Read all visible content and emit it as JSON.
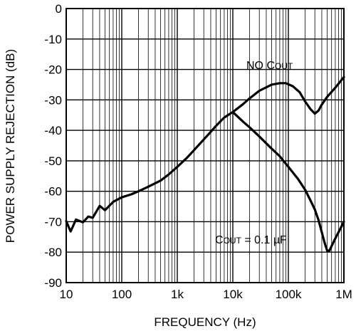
{
  "chart_data": {
    "type": "line",
    "title": "",
    "xlabel": "FREQUENCY (Hz)",
    "ylabel": "POWER SUPPLY REJECTION (dB)",
    "xscale": "log",
    "xlim": [
      10,
      1000000
    ],
    "ylim": [
      -90,
      0
    ],
    "grid": true,
    "x_ticks": [
      {
        "value": 10,
        "label": "10"
      },
      {
        "value": 100,
        "label": "100"
      },
      {
        "value": 1000,
        "label": "1k"
      },
      {
        "value": 10000,
        "label": "10k"
      },
      {
        "value": 100000,
        "label": "100k"
      },
      {
        "value": 1000000,
        "label": "1M"
      }
    ],
    "y_ticks": [
      {
        "value": 0,
        "label": "0"
      },
      {
        "value": -10,
        "label": "-10"
      },
      {
        "value": -20,
        "label": "-20"
      },
      {
        "value": -30,
        "label": "-30"
      },
      {
        "value": -40,
        "label": "-40"
      },
      {
        "value": -50,
        "label": "-50"
      },
      {
        "value": -60,
        "label": "-60"
      },
      {
        "value": -70,
        "label": "-70"
      },
      {
        "value": -80,
        "label": "-80"
      },
      {
        "value": -90,
        "label": "-90"
      }
    ],
    "series": [
      {
        "name": "NO COUT",
        "x": [
          10000,
          15000,
          20000,
          30000,
          50000,
          70000,
          90000,
          120000,
          160000,
          200000,
          250000,
          300000,
          350000,
          400000,
          500000,
          700000,
          1000000
        ],
        "y": [
          -34,
          -31.5,
          -29.5,
          -27,
          -25,
          -24.5,
          -24.5,
          -25.5,
          -27.5,
          -30.5,
          -33,
          -34.5,
          -33.5,
          -31.5,
          -29,
          -26,
          -22.5
        ]
      },
      {
        "name": "COUT = 0.1 µF",
        "x": [
          10,
          12,
          15,
          20,
          25,
          30,
          40,
          50,
          70,
          100,
          150,
          200,
          300,
          500,
          700,
          1000,
          1500,
          2000,
          3000,
          4000,
          5000,
          7000,
          9000,
          10000,
          15000,
          20000,
          30000,
          50000,
          70000,
          100000,
          150000,
          200000,
          250000,
          300000,
          350000,
          400000,
          450000,
          500000,
          550000,
          600000,
          700000,
          800000,
          1000000
        ],
        "y": [
          -71,
          -72,
          -70.5,
          -69,
          -69.5,
          -67.5,
          -66,
          -65,
          -63.5,
          -62,
          -61,
          -60,
          -58.5,
          -56.5,
          -54.5,
          -52,
          -49,
          -46.5,
          -43,
          -40.5,
          -38.5,
          -35.8,
          -34.5,
          -34,
          -37,
          -39,
          -42,
          -46,
          -48.5,
          -52,
          -56,
          -59.5,
          -63,
          -66,
          -69.5,
          -73.5,
          -77,
          -79.5,
          -79.5,
          -78,
          -75.5,
          -73.5,
          -70
        ]
      }
    ],
    "annotations": [
      {
        "main": "NO C",
        "sub": "OUT"
      },
      {
        "main": "C",
        "sub": "OUT",
        "tail": " = 0.1 µF"
      }
    ]
  }
}
